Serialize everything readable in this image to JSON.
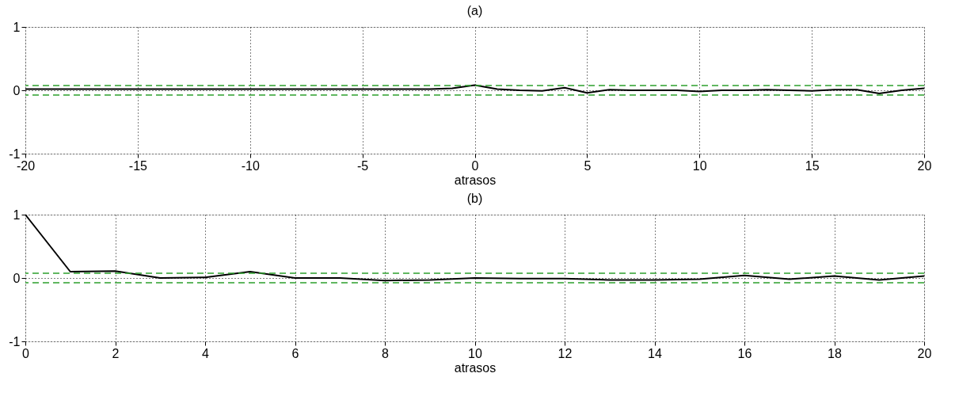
{
  "chart_data": [
    {
      "type": "line",
      "title": "(a)",
      "xlabel": "atrasos",
      "x": [
        -20,
        -19,
        -18,
        -17,
        -16,
        -15,
        -14,
        -13,
        -12,
        -11,
        -10,
        -9,
        -8,
        -7,
        -6,
        -5,
        -4,
        -3,
        -2,
        -1,
        0,
        1,
        2,
        3,
        4,
        5,
        6,
        7,
        8,
        9,
        10,
        11,
        12,
        13,
        14,
        15,
        16,
        17,
        18,
        19,
        20
      ],
      "series": [
        {
          "color": "#000000",
          "values": [
            0.02,
            0.02,
            0.02,
            0.02,
            0.02,
            0.02,
            0.02,
            0.02,
            0.02,
            0.02,
            0.02,
            0.02,
            0.02,
            0.02,
            0.02,
            0.02,
            0.02,
            0.02,
            0.02,
            0.03,
            0.08,
            0.02,
            0.0,
            -0.01,
            0.04,
            -0.04,
            0.01,
            0.0,
            0.0,
            0.0,
            -0.02,
            0.0,
            0.0,
            0.01,
            0.0,
            -0.01,
            0.01,
            0.01,
            -0.05,
            0.0,
            0.03
          ]
        }
      ],
      "xlim": [
        -20,
        20
      ],
      "xticks": [
        -20,
        -15,
        -10,
        -5,
        0,
        5,
        10,
        15,
        20
      ],
      "ylim": [
        -1,
        1
      ],
      "yticks": [
        -1,
        0,
        1
      ],
      "ref_lines": [
        {
          "axis": "y",
          "value": 0.075,
          "color": "#2ca02c",
          "line_style": "dashed"
        },
        {
          "axis": "y",
          "value": -0.075,
          "color": "#2ca02c",
          "line_style": "dashed"
        }
      ],
      "grid": true,
      "line_style": "solid",
      "marker": "none"
    },
    {
      "type": "line",
      "title": "(b)",
      "xlabel": "atrasos",
      "x": [
        0,
        1,
        2,
        3,
        4,
        5,
        6,
        7,
        8,
        9,
        10,
        11,
        12,
        13,
        14,
        15,
        16,
        17,
        18,
        19,
        20
      ],
      "series": [
        {
          "color": "#000000",
          "values": [
            1,
            0.1,
            0.11,
            0.0,
            0.01,
            0.1,
            0.0,
            0.0,
            -0.04,
            -0.03,
            0.0,
            -0.01,
            -0.01,
            -0.03,
            -0.03,
            -0.02,
            0.04,
            -0.02,
            0.03,
            -0.03,
            0.03
          ]
        }
      ],
      "xlim": [
        0,
        20
      ],
      "xticks": [
        0,
        2,
        4,
        6,
        8,
        10,
        12,
        14,
        16,
        18,
        20
      ],
      "ylim": [
        -1,
        1
      ],
      "yticks": [
        -1,
        0,
        1
      ],
      "ref_lines": [
        {
          "axis": "y",
          "value": 0.075,
          "color": "#2ca02c",
          "line_style": "dashed"
        },
        {
          "axis": "y",
          "value": -0.075,
          "color": "#2ca02c",
          "line_style": "dashed"
        }
      ],
      "grid": true,
      "line_style": "solid",
      "marker": "none"
    }
  ]
}
